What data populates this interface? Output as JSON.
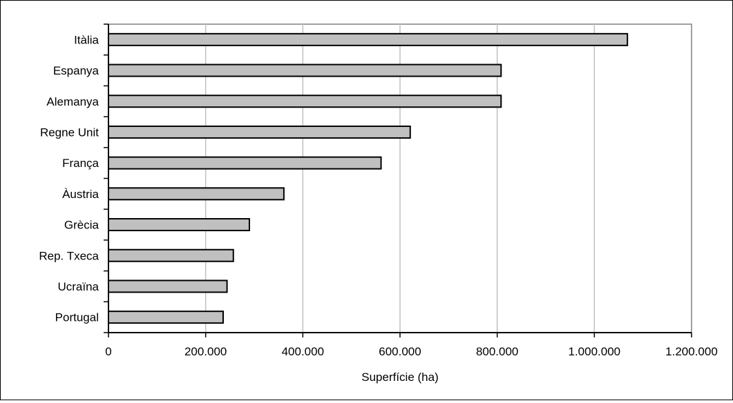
{
  "chart_data": {
    "type": "bar",
    "orientation": "horizontal",
    "categories": [
      "Itàlia",
      "Espanya",
      "Alemanya",
      "Regne Unit",
      "França",
      "Àustria",
      "Grècia",
      "Rep. Txeca",
      "Ucraïna",
      "Portugal"
    ],
    "values": [
      1068000,
      808000,
      808000,
      621000,
      561000,
      361000,
      290000,
      257000,
      244000,
      236000
    ],
    "xlabel": "Superfície (ha)",
    "ylabel": "",
    "title": "",
    "xlim": [
      0,
      1200000
    ],
    "x_ticks": [
      "0",
      "200.000",
      "400.000",
      "600.000",
      "800.000",
      "1.000.000",
      "1.200.000"
    ],
    "grid": "vertical",
    "legend": "none",
    "colors": {
      "bar_fill": "#c0c0c0",
      "bar_stroke": "#000000",
      "grid": "#c0c0c0",
      "plot_border": "#808080",
      "frame": "#000000"
    }
  }
}
